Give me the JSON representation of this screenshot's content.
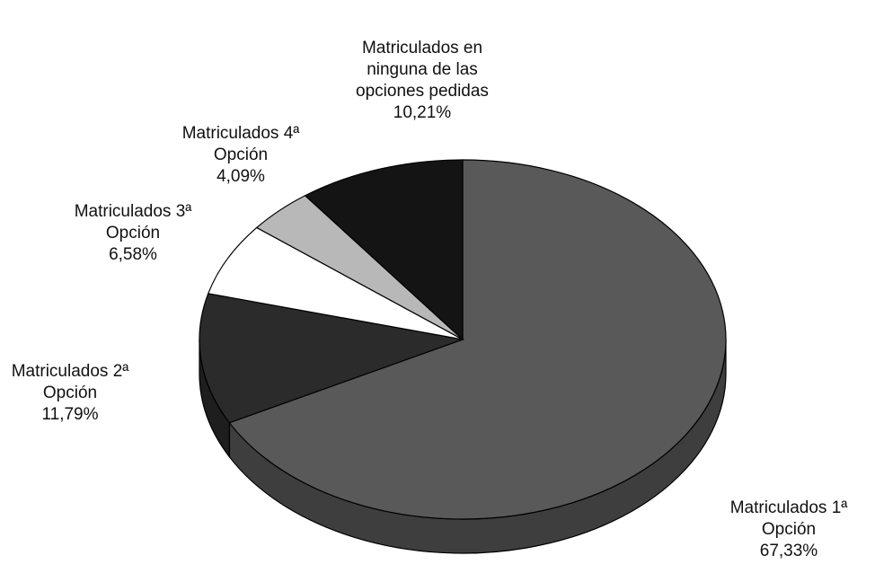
{
  "chart_data": {
    "type": "pie",
    "categories": [
      "Matriculados 1ª Opción",
      "Matriculados 2ª Opción",
      "Matriculados 3ª Opción",
      "Matriculados 4ª Opción",
      "Matriculados en ninguna de las opciones pedidas"
    ],
    "values": [
      67.33,
      11.79,
      6.58,
      4.09,
      10.21
    ],
    "value_labels": [
      "67,33%",
      "11,79%",
      "6,58%",
      "4,09%",
      "10,21%"
    ],
    "colors": [
      "#595959",
      "#2b2b2b",
      "#ffffff",
      "#b8b8b8",
      "#141414"
    ]
  }
}
